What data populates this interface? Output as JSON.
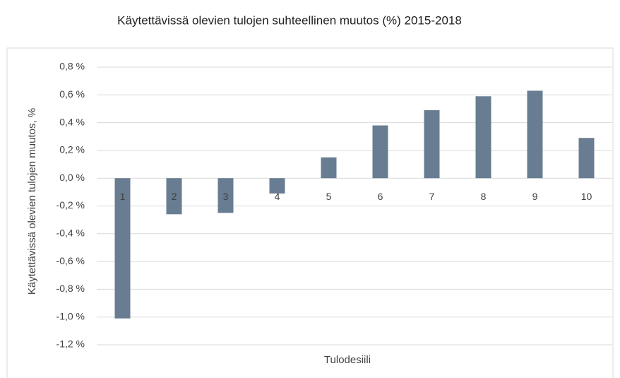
{
  "chart_data": {
    "type": "bar",
    "title": "Käytettävissä olevien tulojen suhteellinen muutos (%) 2015-2018",
    "y_label": "Käytettävissä olevien tulojen muutos, %",
    "x_label": "Tulodesiili",
    "categories": [
      "1",
      "2",
      "3",
      "4",
      "5",
      "6",
      "7",
      "8",
      "9",
      "10"
    ],
    "values": [
      -1.01,
      -0.26,
      -0.25,
      -0.11,
      0.15,
      0.38,
      0.49,
      0.59,
      0.63,
      0.29
    ],
    "color": "#687d91",
    "ylim": [
      -1.2,
      0.8
    ],
    "yticks": [
      {
        "value": -1.2,
        "label": "-1,2 %"
      },
      {
        "value": -1.0,
        "label": "-1,0 %"
      },
      {
        "value": -0.8,
        "label": "-0,8 %"
      },
      {
        "value": -0.6,
        "label": "-0,6 %"
      },
      {
        "value": -0.4,
        "label": "-0,4 %"
      },
      {
        "value": -0.2,
        "label": "-0,2 %"
      },
      {
        "value": 0.0,
        "label": "0,0 %"
      },
      {
        "value": 0.2,
        "label": "0,2 %"
      },
      {
        "value": 0.4,
        "label": "0,4 %"
      },
      {
        "value": 0.6,
        "label": "0,6 %"
      },
      {
        "value": 0.8,
        "label": "0,8 %"
      }
    ],
    "grid": true
  }
}
